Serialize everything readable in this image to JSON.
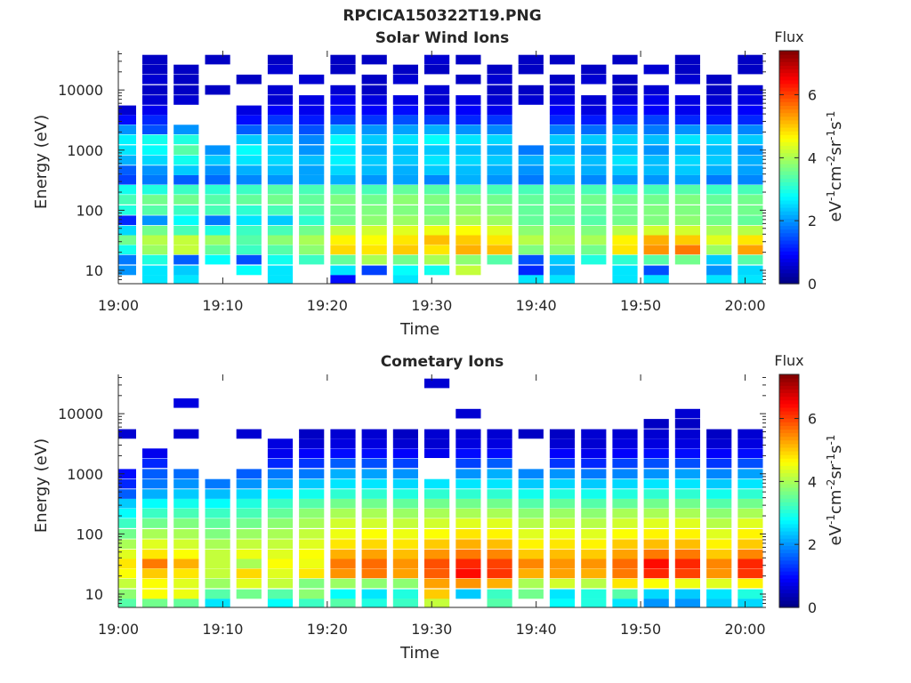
{
  "figure_title": "RPCICA150322T19.PNG",
  "chart_data": [
    {
      "type": "heatmap",
      "title": "Solar Wind Ions",
      "xlabel": "Time",
      "ylabel": "Energy (eV)",
      "y_scale": "log",
      "ylim": [
        6,
        45000
      ],
      "x_ticks": [
        "19:00",
        "19:10",
        "19:20",
        "19:30",
        "19:40",
        "19:50",
        "20:00"
      ],
      "xlim": [
        "19:00",
        "20:02"
      ],
      "y_ticks": [
        10,
        100,
        1000,
        10000
      ],
      "y_tick_labels": [
        "10",
        "100",
        "1000",
        "10000"
      ],
      "colorbar": {
        "title": "Flux",
        "label": "eV-1cm-2sr-1s-1",
        "range": [
          0,
          7.4
        ],
        "ticks": [
          0,
          2,
          4,
          6
        ],
        "colormap": "jet"
      },
      "time_columns_minutes": [
        0.5,
        3.5,
        6.5,
        9.5,
        12.5,
        15.5,
        18.5,
        21.5,
        24.5,
        27.5,
        30.5,
        33.5,
        36.5,
        39.5,
        42.5,
        45.5,
        48.5,
        51.5,
        54.5,
        57.5,
        60.5
      ],
      "energy_rows_eV": [
        7,
        10,
        15,
        22,
        32,
        46,
        68,
        100,
        150,
        220,
        320,
        460,
        680,
        1000,
        1500,
        2200,
        3200,
        4600,
        6800,
        10000,
        15000,
        22000,
        32000
      ],
      "flux_levels": [
        [
          0.0,
          2.6,
          2.6,
          0.0,
          0.0,
          2.6,
          0.0,
          1.0,
          0.0,
          2.6,
          0.0,
          0.0,
          0.0,
          2.6,
          2.6,
          0.0,
          2.6,
          2.6,
          0.0,
          2.6,
          2.6
        ],
        [
          2.0,
          2.6,
          2.4,
          0.0,
          2.8,
          2.6,
          0.0,
          2.6,
          1.4,
          2.8,
          2.9,
          4.2,
          0.0,
          1.2,
          2.2,
          0.0,
          2.6,
          1.5,
          0.0,
          2.0,
          2.5
        ],
        [
          1.8,
          3.0,
          1.6,
          2.8,
          1.5,
          2.9,
          3.2,
          3.5,
          4.0,
          3.6,
          4.0,
          3.8,
          3.4,
          1.5,
          2.4,
          3.0,
          3.1,
          3.4,
          3.6,
          2.4,
          3.4
        ],
        [
          2.9,
          3.9,
          4.2,
          3.5,
          3.2,
          3.4,
          3.8,
          4.9,
          4.8,
          5.0,
          4.8,
          5.2,
          5.1,
          3.7,
          3.8,
          3.6,
          4.8,
          5.4,
          5.6,
          3.9,
          5.3
        ],
        [
          3.6,
          4.1,
          4.2,
          3.9,
          3.4,
          3.8,
          4.0,
          4.7,
          4.6,
          4.8,
          5.1,
          5.0,
          4.8,
          4.1,
          4.0,
          4.0,
          4.7,
          5.2,
          5.0,
          4.4,
          4.8
        ],
        [
          2.5,
          3.6,
          3.3,
          3.0,
          3.2,
          3.3,
          3.6,
          4.2,
          4.3,
          4.4,
          4.5,
          4.6,
          4.4,
          3.8,
          3.9,
          3.7,
          4.1,
          4.3,
          4.3,
          4.0,
          4.1
        ],
        [
          1.2,
          2.0,
          2.8,
          1.8,
          2.6,
          2.4,
          3.1,
          3.6,
          3.8,
          3.9,
          3.8,
          4.0,
          3.9,
          3.5,
          3.5,
          3.4,
          3.6,
          3.7,
          3.8,
          3.6,
          3.5
        ],
        [
          3.0,
          3.4,
          3.2,
          3.3,
          3.1,
          3.3,
          3.4,
          3.6,
          3.7,
          3.7,
          3.6,
          3.8,
          3.7,
          3.5,
          3.6,
          3.5,
          3.6,
          3.7,
          3.7,
          3.6,
          3.6
        ],
        [
          3.3,
          3.6,
          3.6,
          3.4,
          3.5,
          3.6,
          3.5,
          3.7,
          3.6,
          3.8,
          3.7,
          3.7,
          3.6,
          3.5,
          3.5,
          3.6,
          3.6,
          3.6,
          3.7,
          3.5,
          3.6
        ],
        [
          2.9,
          3.0,
          3.2,
          3.1,
          3.2,
          3.4,
          3.3,
          3.4,
          3.3,
          3.5,
          3.4,
          3.4,
          3.3,
          3.3,
          3.4,
          3.3,
          3.2,
          3.3,
          3.4,
          3.2,
          3.3
        ],
        [
          1.4,
          1.8,
          1.6,
          1.7,
          1.9,
          2.0,
          2.1,
          2.2,
          2.0,
          2.1,
          1.9,
          2.2,
          2.0,
          1.8,
          2.1,
          1.9,
          2.0,
          2.0,
          2.1,
          1.8,
          1.9
        ],
        [
          1.6,
          2.0,
          2.4,
          2.0,
          2.2,
          2.3,
          2.1,
          2.5,
          2.3,
          2.2,
          2.4,
          2.3,
          2.2,
          2.0,
          2.3,
          2.2,
          2.4,
          2.3,
          2.4,
          2.2,
          2.1
        ],
        [
          2.2,
          2.5,
          2.9,
          2.4,
          2.6,
          2.5,
          2.3,
          2.7,
          2.4,
          2.4,
          2.6,
          2.5,
          2.4,
          2.2,
          2.5,
          2.3,
          2.6,
          2.3,
          2.5,
          2.4,
          2.2
        ],
        [
          2.6,
          2.8,
          3.4,
          2.0,
          2.8,
          2.4,
          2.0,
          2.6,
          2.2,
          2.3,
          2.4,
          2.3,
          2.2,
          1.8,
          2.1,
          2.0,
          2.3,
          2.0,
          2.2,
          2.3,
          2.0
        ],
        [
          2.7,
          2.9,
          3.0,
          0.0,
          2.4,
          2.3,
          1.9,
          2.8,
          2.4,
          2.6,
          2.8,
          2.6,
          2.5,
          0.0,
          2.4,
          2.4,
          2.5,
          2.3,
          2.6,
          2.5,
          2.4
        ],
        [
          2.0,
          1.5,
          2.0,
          0.0,
          1.6,
          1.8,
          1.5,
          2.2,
          2.0,
          2.1,
          2.2,
          2.0,
          1.9,
          0.0,
          1.8,
          1.7,
          2.0,
          1.8,
          2.0,
          1.9,
          1.9
        ],
        [
          1.0,
          1.2,
          0.0,
          0.0,
          1.0,
          1.3,
          1.1,
          1.4,
          1.3,
          1.5,
          1.4,
          1.2,
          1.3,
          0.0,
          1.2,
          1.1,
          1.3,
          1.4,
          1.2,
          1.1,
          1.2
        ],
        [
          0.6,
          0.8,
          0.0,
          0.0,
          0.7,
          0.9,
          0.8,
          1.0,
          0.9,
          1.0,
          0.8,
          0.9,
          0.8,
          0.0,
          0.9,
          0.7,
          1.0,
          0.9,
          0.8,
          0.8,
          0.9
        ],
        [
          0.0,
          0.6,
          0.6,
          0.0,
          0.0,
          0.6,
          0.7,
          0.8,
          0.7,
          0.7,
          0.6,
          0.7,
          0.6,
          0.6,
          0.7,
          0.6,
          0.7,
          0.8,
          0.7,
          0.6,
          0.7
        ],
        [
          0.0,
          0.5,
          0.5,
          0.5,
          0.0,
          0.6,
          0.0,
          0.6,
          0.5,
          0.0,
          0.6,
          0.0,
          0.5,
          0.5,
          0.6,
          0.0,
          0.5,
          0.6,
          0.0,
          0.5,
          0.6
        ],
        [
          0.0,
          0.6,
          0.5,
          0.0,
          0.5,
          0.0,
          0.6,
          0.0,
          0.5,
          0.6,
          0.0,
          0.5,
          0.6,
          0.0,
          0.5,
          0.6,
          0.5,
          0.0,
          0.6,
          0.5,
          0.0
        ],
        [
          0.0,
          0.5,
          0.5,
          0.0,
          0.0,
          0.6,
          0.0,
          0.5,
          0.0,
          0.5,
          0.5,
          0.0,
          0.5,
          0.5,
          0.0,
          0.5,
          0.0,
          0.6,
          0.5,
          0.0,
          0.5
        ],
        [
          0.0,
          0.5,
          0.0,
          0.5,
          0.0,
          0.5,
          0.0,
          0.5,
          0.5,
          0.0,
          0.6,
          0.5,
          0.0,
          0.5,
          0.5,
          0.0,
          0.5,
          0.0,
          0.5,
          0.0,
          0.5
        ]
      ]
    },
    {
      "type": "heatmap",
      "title": "Cometary Ions",
      "xlabel": "Time",
      "ylabel": "Energy (eV)",
      "y_scale": "log",
      "ylim": [
        6,
        45000
      ],
      "x_ticks": [
        "19:00",
        "19:10",
        "19:20",
        "19:30",
        "19:40",
        "19:50",
        "20:00"
      ],
      "xlim": [
        "19:00",
        "20:02"
      ],
      "y_ticks": [
        10,
        100,
        1000,
        10000
      ],
      "y_tick_labels": [
        "10",
        "100",
        "1000",
        "10000"
      ],
      "colorbar": {
        "title": "Flux",
        "label": "eV-1cm-2sr-1s-1",
        "range": [
          0,
          7.4
        ],
        "ticks": [
          0,
          2,
          4,
          6
        ],
        "colormap": "jet"
      },
      "time_columns_minutes": [
        0.5,
        3.5,
        6.5,
        9.5,
        12.5,
        15.5,
        18.5,
        21.5,
        24.5,
        27.5,
        30.5,
        33.5,
        36.5,
        39.5,
        42.5,
        45.5,
        48.5,
        51.5,
        54.5,
        57.5,
        60.5
      ],
      "energy_rows_eV": [
        7,
        10,
        15,
        22,
        32,
        46,
        68,
        100,
        150,
        220,
        320,
        460,
        680,
        1000,
        1500,
        2200,
        3200,
        4600,
        6800,
        10000,
        15000,
        22000,
        32000
      ],
      "flux_levels": [
        [
          3.4,
          3.6,
          3.5,
          2.6,
          0.0,
          2.8,
          3.2,
          3.4,
          3.0,
          3.2,
          4.2,
          0.0,
          3.4,
          0.0,
          2.8,
          3.0,
          2.6,
          2.0,
          2.0,
          2.4,
          2.5
        ],
        [
          3.8,
          4.6,
          4.5,
          3.4,
          3.6,
          3.4,
          3.8,
          2.8,
          2.6,
          3.0,
          5.0,
          2.4,
          3.2,
          3.6,
          2.6,
          3.0,
          3.4,
          2.5,
          2.4,
          2.6,
          3.0
        ],
        [
          4.2,
          4.6,
          4.4,
          3.9,
          4.4,
          4.2,
          3.7,
          3.9,
          3.8,
          3.8,
          5.3,
          5.4,
          5.2,
          4.0,
          4.3,
          4.1,
          4.8,
          4.6,
          4.5,
          4.4,
          4.7
        ],
        [
          4.6,
          5.0,
          4.8,
          4.2,
          4.9,
          4.4,
          4.8,
          5.4,
          5.6,
          5.3,
          5.8,
          6.4,
          6.1,
          5.2,
          5.3,
          5.2,
          5.6,
          6.2,
          6.0,
          5.4,
          6.1
        ],
        [
          4.8,
          5.6,
          5.2,
          4.2,
          4.0,
          4.6,
          4.5,
          5.6,
          5.7,
          5.4,
          5.9,
          6.2,
          6.0,
          5.5,
          5.4,
          5.4,
          5.7,
          6.4,
          6.2,
          5.5,
          6.2
        ],
        [
          4.4,
          4.8,
          4.6,
          4.2,
          4.5,
          4.4,
          4.6,
          5.2,
          5.3,
          5.1,
          5.4,
          5.6,
          5.5,
          5.0,
          5.1,
          5.0,
          5.3,
          5.6,
          5.6,
          5.0,
          5.5
        ],
        [
          4.0,
          4.4,
          4.3,
          4.0,
          4.2,
          4.2,
          4.4,
          4.8,
          4.9,
          4.8,
          5.0,
          5.2,
          5.1,
          4.7,
          4.8,
          4.7,
          5.0,
          5.1,
          5.1,
          4.7,
          5.0
        ],
        [
          3.6,
          4.0,
          4.0,
          3.7,
          3.9,
          4.0,
          4.2,
          4.5,
          4.6,
          4.5,
          4.6,
          4.8,
          4.7,
          4.4,
          4.5,
          4.4,
          4.6,
          4.7,
          4.7,
          4.4,
          4.7
        ],
        [
          3.2,
          3.6,
          3.7,
          3.5,
          3.6,
          3.8,
          4.0,
          4.3,
          4.3,
          4.2,
          4.3,
          4.4,
          4.4,
          4.1,
          4.2,
          4.1,
          4.3,
          4.4,
          4.4,
          4.1,
          4.4
        ],
        [
          2.8,
          3.2,
          3.3,
          3.2,
          3.3,
          3.5,
          3.8,
          4.0,
          4.0,
          3.9,
          4.0,
          4.0,
          4.0,
          3.8,
          3.9,
          3.8,
          4.0,
          4.0,
          4.0,
          3.8,
          4.0
        ],
        [
          2.4,
          2.8,
          2.9,
          2.8,
          3.0,
          3.2,
          3.4,
          3.6,
          3.6,
          3.5,
          3.6,
          3.6,
          3.6,
          3.4,
          3.5,
          3.4,
          3.5,
          3.6,
          3.6,
          3.4,
          3.6
        ],
        [
          1.6,
          2.2,
          2.4,
          2.3,
          2.5,
          2.7,
          2.9,
          3.1,
          3.1,
          3.0,
          3.1,
          3.1,
          3.1,
          2.9,
          3.0,
          2.9,
          3.0,
          3.1,
          3.1,
          2.9,
          3.1
        ],
        [
          1.2,
          1.8,
          2.0,
          1.8,
          2.0,
          2.2,
          2.4,
          2.6,
          2.6,
          2.5,
          2.6,
          2.6,
          2.6,
          2.4,
          2.5,
          2.4,
          2.5,
          2.6,
          2.6,
          2.4,
          2.6
        ],
        [
          1.0,
          1.6,
          1.7,
          0.0,
          1.6,
          1.8,
          1.8,
          2.2,
          2.1,
          2.0,
          0.0,
          2.0,
          2.2,
          1.9,
          2.0,
          1.8,
          1.9,
          2.0,
          2.1,
          1.9,
          2.1
        ],
        [
          0.0,
          1.2,
          0.0,
          0.0,
          0.0,
          1.2,
          1.3,
          1.6,
          1.5,
          1.4,
          0.0,
          1.4,
          1.6,
          0.0,
          1.3,
          1.2,
          1.4,
          1.5,
          1.5,
          1.3,
          1.5
        ],
        [
          0.0,
          0.8,
          0.0,
          0.0,
          0.0,
          0.8,
          0.9,
          1.0,
          1.0,
          0.9,
          0.8,
          1.0,
          1.0,
          0.0,
          0.9,
          0.8,
          0.9,
          1.0,
          1.0,
          0.9,
          1.0
        ],
        [
          0.0,
          0.0,
          0.0,
          0.0,
          0.0,
          0.7,
          0.6,
          0.7,
          0.7,
          0.6,
          0.6,
          0.7,
          0.7,
          0.0,
          0.6,
          0.6,
          0.7,
          0.7,
          0.7,
          0.6,
          0.7
        ],
        [
          0.6,
          0.0,
          0.6,
          0.0,
          0.6,
          0.0,
          0.5,
          0.6,
          0.6,
          0.5,
          0.6,
          0.6,
          0.6,
          0.5,
          0.5,
          0.6,
          0.6,
          0.6,
          0.6,
          0.5,
          0.6
        ],
        [
          0.0,
          0.0,
          0.0,
          0.0,
          0.0,
          0.0,
          0.0,
          0.0,
          0.0,
          0.0,
          0.0,
          0.0,
          0.0,
          0.0,
          0.0,
          0.0,
          0.0,
          0.5,
          0.5,
          0.0,
          0.0
        ],
        [
          0.0,
          0.0,
          0.0,
          0.0,
          0.0,
          0.0,
          0.0,
          0.0,
          0.0,
          0.0,
          0.0,
          0.6,
          0.0,
          0.0,
          0.0,
          0.0,
          0.0,
          0.0,
          0.6,
          0.0,
          0.0
        ],
        [
          0.0,
          0.0,
          0.7,
          0.0,
          0.0,
          0.0,
          0.0,
          0.0,
          0.0,
          0.0,
          0.0,
          0.0,
          0.0,
          0.0,
          0.0,
          0.0,
          0.0,
          0.0,
          0.0,
          0.0,
          0.0
        ],
        [
          0.0,
          0.0,
          0.0,
          0.0,
          0.0,
          0.0,
          0.0,
          0.0,
          0.0,
          0.0,
          0.0,
          0.0,
          0.0,
          0.0,
          0.0,
          0.0,
          0.0,
          0.0,
          0.0,
          0.0,
          0.0
        ],
        [
          0.0,
          0.0,
          0.0,
          0.0,
          0.0,
          0.0,
          0.0,
          0.0,
          0.0,
          0.0,
          0.6,
          0.0,
          0.0,
          0.0,
          0.0,
          0.0,
          0.0,
          0.0,
          0.0,
          0.0,
          0.0
        ]
      ]
    }
  ]
}
